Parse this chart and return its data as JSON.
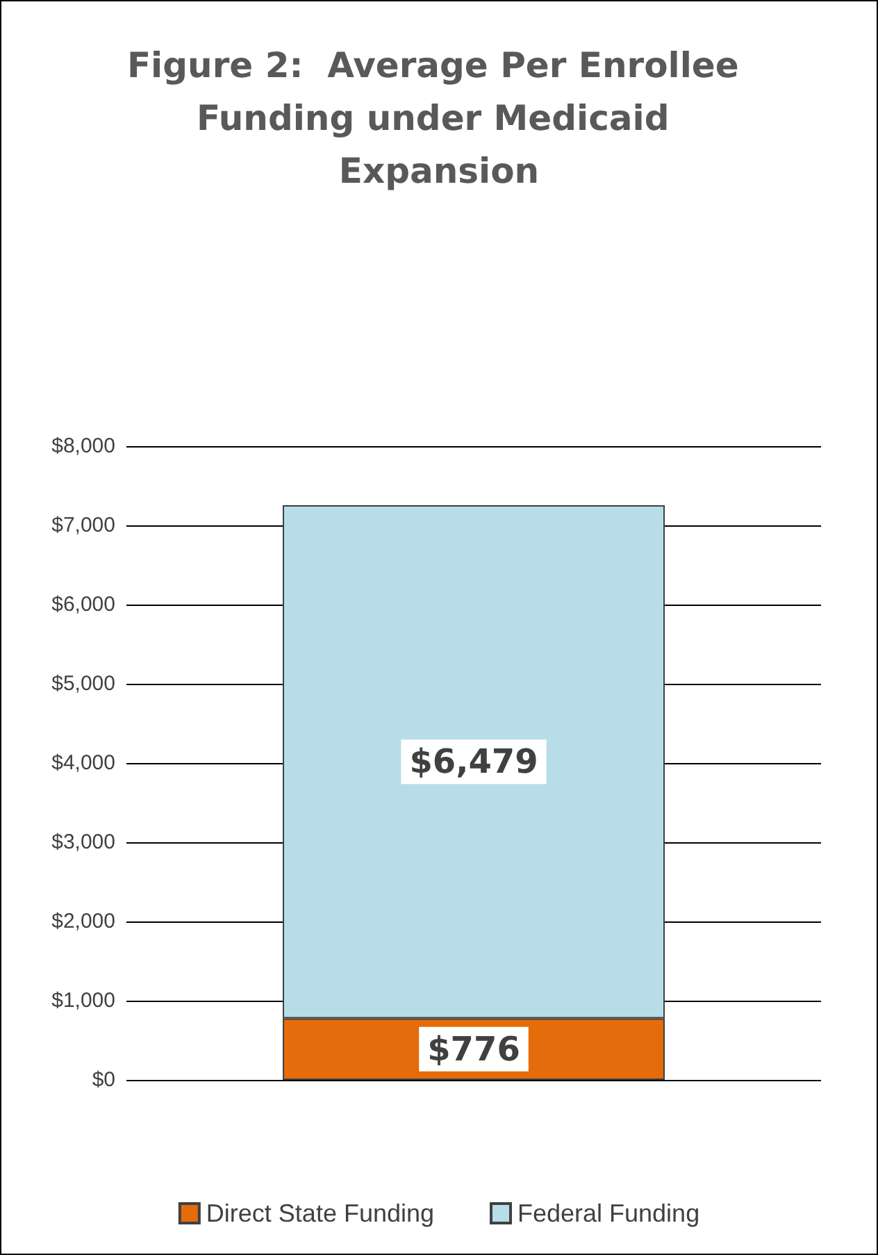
{
  "chart_data": {
    "type": "bar",
    "title": "Figure 2:  Average Per Enrollee Funding under Medicaid Expansion",
    "categories": [
      null
    ],
    "stacked": true,
    "series": [
      {
        "name": "Direct State Funding",
        "color": "#e46c0a",
        "values": [
          776
        ],
        "value_labels": [
          "$776"
        ]
      },
      {
        "name": "Federal Funding",
        "color": "#b7dee8",
        "values": [
          6479
        ],
        "value_labels": [
          "$6,479"
        ]
      }
    ],
    "ylim": [
      0,
      8000
    ],
    "yticks": [
      {
        "value": 0,
        "label": "$0"
      },
      {
        "value": 1000,
        "label": "$1,000"
      },
      {
        "value": 2000,
        "label": "$2,000"
      },
      {
        "value": 3000,
        "label": "$3,000"
      },
      {
        "value": 4000,
        "label": "$4,000"
      },
      {
        "value": 5000,
        "label": "$5,000"
      },
      {
        "value": 6000,
        "label": "$6,000"
      },
      {
        "value": 7000,
        "label": "$7,000"
      },
      {
        "value": 8000,
        "label": "$8,000"
      }
    ],
    "grid": "y",
    "legend": "bottom"
  }
}
